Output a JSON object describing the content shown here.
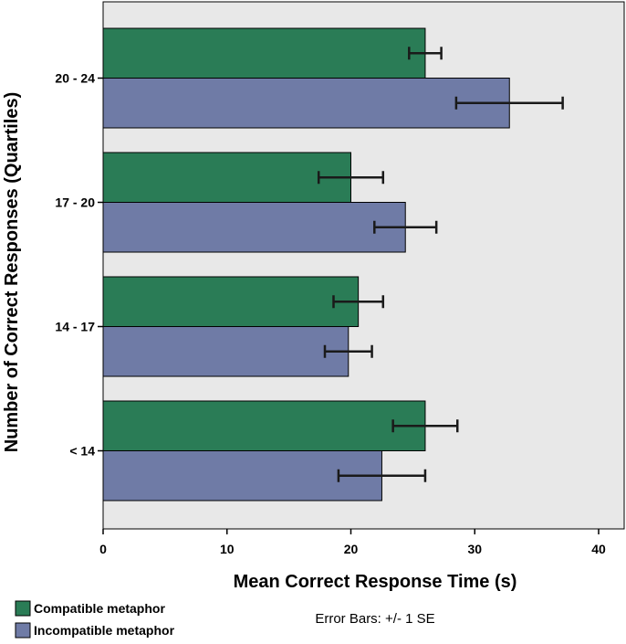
{
  "chart_data": {
    "type": "bar",
    "orientation": "horizontal",
    "title": "",
    "xlabel": "Mean Correct Response Time (s)",
    "ylabel": "Number of Correct Responses (Quartiles)",
    "xlim": [
      0,
      42
    ],
    "xticks": [
      0,
      10,
      20,
      30,
      40
    ],
    "grid": false,
    "categories": [
      "20 - 24",
      "17 - 20",
      "14 - 17",
      "< 14"
    ],
    "series": [
      {
        "name": "Compatible metaphor",
        "color": "#2a7c56",
        "values": [
          26.0,
          20.0,
          20.6,
          26.0
        ],
        "error": [
          1.3,
          2.6,
          2.0,
          2.6
        ]
      },
      {
        "name": "Incompatible metaphor",
        "color": "#6f7ba6",
        "values": [
          32.8,
          24.4,
          19.8,
          22.5
        ],
        "error": [
          4.3,
          2.5,
          1.9,
          3.5
        ]
      }
    ],
    "legend_position": "bottom-left",
    "note": "Error Bars: +/- 1 SE"
  }
}
